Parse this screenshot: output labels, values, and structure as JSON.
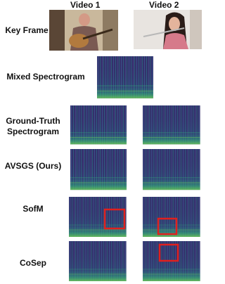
{
  "header": {
    "columns": [
      "Video 1",
      "Video 2"
    ]
  },
  "rows": [
    "Key Frame",
    "Mixed Spectrogram",
    "Ground-Truth Spectrogram",
    "AVSGS (Ours)",
    "SofM",
    "CoSep"
  ]
}
